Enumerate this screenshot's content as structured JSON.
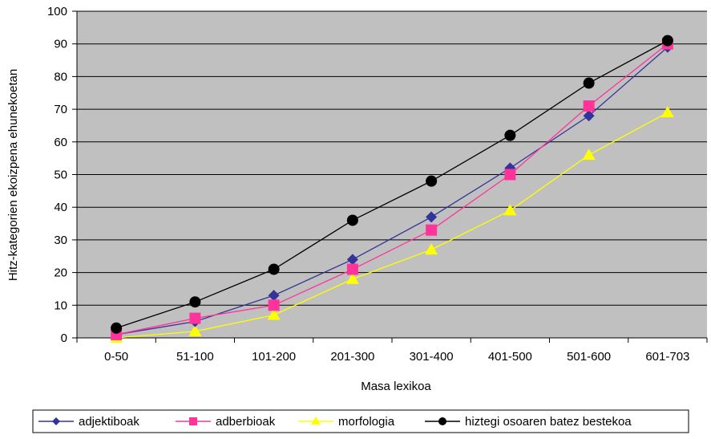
{
  "chart_data": {
    "type": "line",
    "title": "",
    "xlabel": "Masa lexikoa",
    "ylabel": "Hitz-kategorien ekoizpena ehunekoetan",
    "categories": [
      "0-50",
      "51-100",
      "101-200",
      "201-300",
      "301-400",
      "401-500",
      "501-600",
      "601-703"
    ],
    "ylim": [
      0,
      100
    ],
    "yticks": [
      0,
      10,
      20,
      30,
      40,
      50,
      60,
      70,
      80,
      90,
      100
    ],
    "grid": true,
    "legend_position": "bottom",
    "plot_background": "#c0c0c0",
    "series": [
      {
        "name": "adjektiboak",
        "color": "#333399",
        "marker": "diamond",
        "values": [
          1,
          5,
          13,
          24,
          37,
          52,
          68,
          89
        ]
      },
      {
        "name": "adberbioak",
        "color": "#ff3399",
        "marker": "square",
        "values": [
          1,
          6,
          10,
          21,
          33,
          50,
          71,
          90
        ]
      },
      {
        "name": "morfologia",
        "color": "#ffff00",
        "marker": "triangle",
        "values": [
          0,
          2,
          7,
          18,
          27,
          39,
          56,
          69
        ]
      },
      {
        "name": "hiztegi osoaren batez bestekoa",
        "color": "#000000",
        "marker": "circle",
        "values": [
          3,
          11,
          21,
          36,
          48,
          62,
          78,
          91
        ]
      }
    ]
  }
}
